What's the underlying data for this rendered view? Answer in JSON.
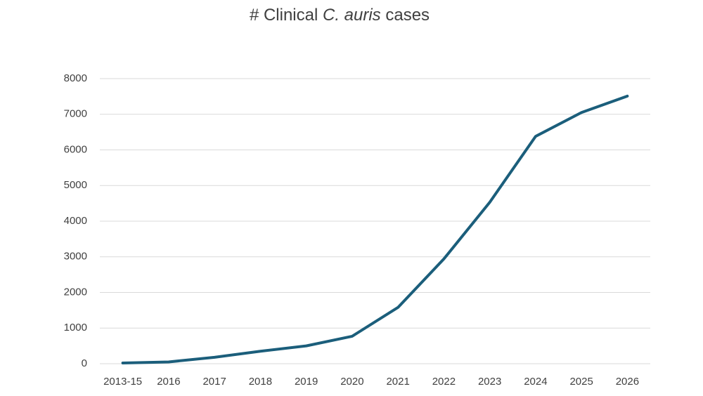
{
  "chart_data": {
    "type": "line",
    "title": [
      "# Clinical",
      "C. auris",
      "cases"
    ],
    "categories": [
      "2013-15",
      "2016",
      "2017",
      "2018",
      "2019",
      "2020",
      "2021",
      "2022",
      "2023",
      "2024",
      "2025",
      "2026"
    ],
    "series": [
      {
        "color": "#1b5e7b",
        "values": [
          20,
          50,
          180,
          350,
          500,
          770,
          1580,
          2940,
          4530,
          6380,
          7050,
          7510
        ]
      }
    ],
    "ylim": [
      0,
      8000
    ],
    "yticks": [
      0,
      1000,
      2000,
      3000,
      4000,
      5000,
      6000,
      7000,
      8000
    ],
    "grid": true
  }
}
